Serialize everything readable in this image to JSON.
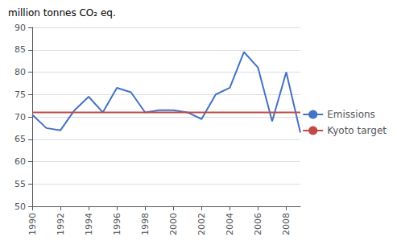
{
  "chart_data": {
    "type": "line",
    "ylabel": "million tonnes CO₂ eq.",
    "x": [
      1990,
      1991,
      1992,
      1993,
      1994,
      1995,
      1996,
      1997,
      1998,
      1999,
      2000,
      2001,
      2002,
      2003,
      2004,
      2005,
      2006,
      2007,
      2008,
      2009
    ],
    "series": [
      {
        "name": "Emissions",
        "color": "#4472C4",
        "values": [
          70.5,
          67.5,
          67.0,
          71.5,
          74.5,
          71.0,
          76.5,
          75.5,
          71.0,
          71.5,
          71.5,
          71.0,
          69.5,
          75.0,
          76.5,
          84.5,
          81.0,
          69.0,
          80.0,
          66.5
        ]
      },
      {
        "name": "Kyoto target",
        "color": "#BE4B48",
        "type": "hline",
        "value": 71.0
      }
    ],
    "xlim": [
      1990,
      2009
    ],
    "xticks": [
      1990,
      1992,
      1994,
      1996,
      1998,
      2000,
      2002,
      2004,
      2006,
      2008
    ],
    "ylim": [
      50,
      90
    ],
    "yticks": [
      50,
      55,
      60,
      65,
      70,
      75,
      80,
      85,
      90
    ],
    "grid": true,
    "legend": "right"
  }
}
